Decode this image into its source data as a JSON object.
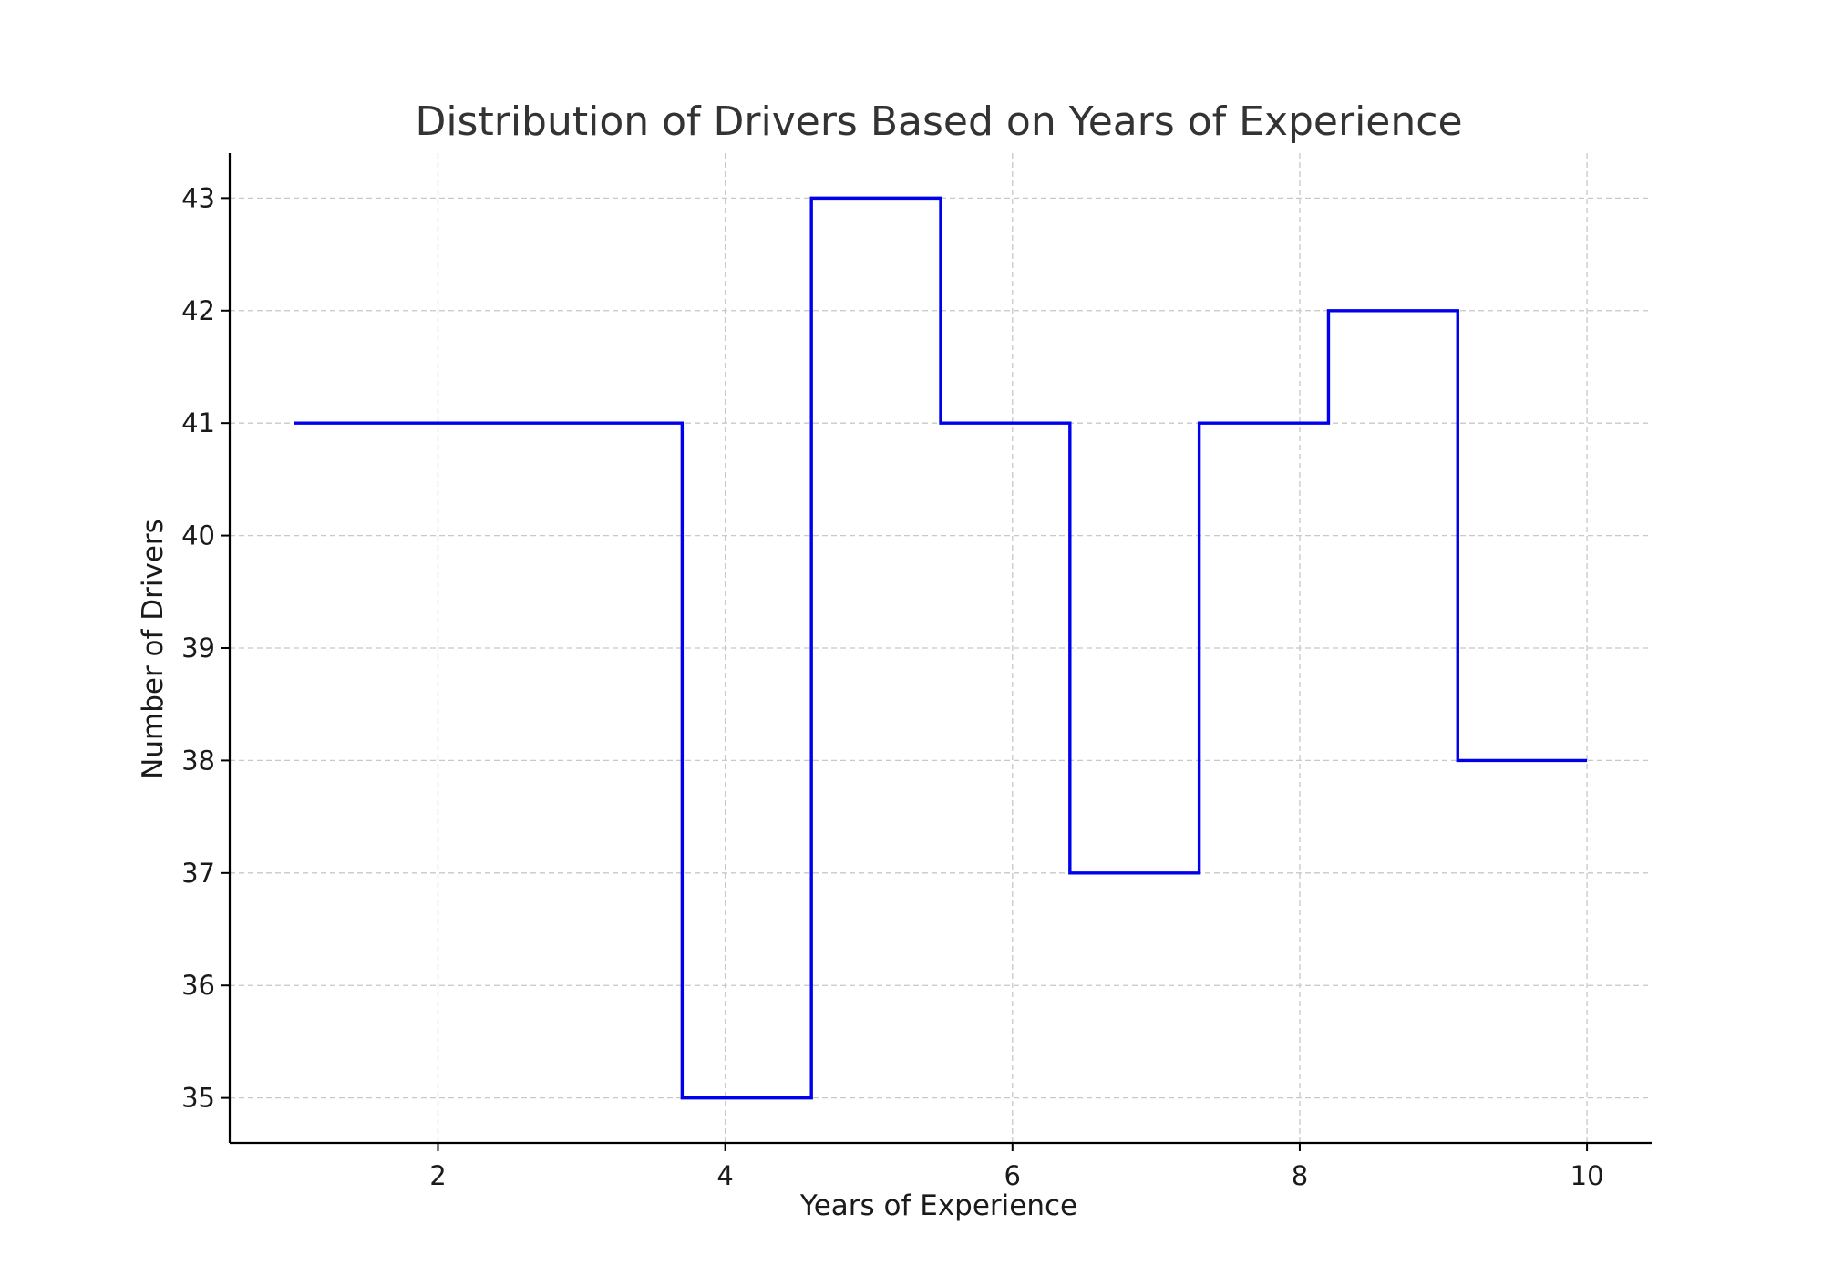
{
  "chart_data": {
    "type": "line",
    "step": "post",
    "title": "Distribution of Drivers Based on Years of Experience",
    "xlabel": "Years of Experience",
    "ylabel": "Number of Drivers",
    "x": [
      1.0,
      1.9,
      2.8,
      3.7,
      4.6,
      5.5,
      6.4,
      7.3,
      8.2,
      9.1,
      10.0
    ],
    "series": [
      {
        "values": [
          41,
          41,
          41,
          35,
          43,
          41,
          37,
          41,
          42,
          38,
          38
        ],
        "color": "#0000ee"
      }
    ],
    "xlim": [
      0.55,
      10.45
    ],
    "ylim": [
      34.6,
      43.4
    ],
    "xticks": [
      2,
      4,
      6,
      8,
      10
    ],
    "xtick_labels": [
      "2",
      "4",
      "6",
      "8",
      "10"
    ],
    "yticks": [
      35,
      36,
      37,
      38,
      39,
      40,
      41,
      42,
      43
    ],
    "ytick_labels": [
      "35",
      "36",
      "37",
      "38",
      "39",
      "40",
      "41",
      "42",
      "43"
    ],
    "grid": true,
    "grid_style": "dashed",
    "grid_color": "#c8c8c8",
    "axis_color": "#000000"
  }
}
